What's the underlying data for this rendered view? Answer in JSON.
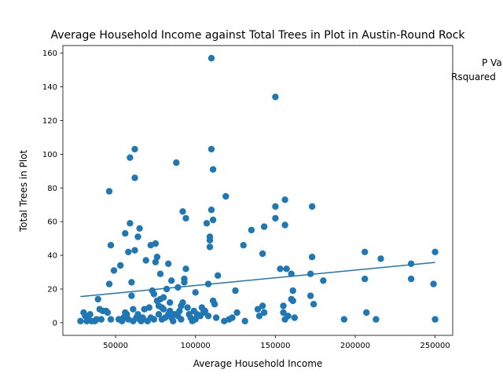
{
  "chart_data": {
    "type": "scatter",
    "title": "Average Household Income against Total Trees in Plot in Austin-Round Rock",
    "xlabel": "Average Household Income",
    "ylabel": "Total Trees in Plot",
    "xlim": [
      17000,
      261000
    ],
    "ylim": [
      -7.5,
      164.5
    ],
    "xticks": [
      50000,
      100000,
      150000,
      200000,
      250000
    ],
    "yticks": [
      0,
      20,
      40,
      60,
      80,
      100,
      120,
      140,
      160
    ],
    "annotations": [
      "P Va",
      "Rsquared"
    ],
    "colors": {
      "points": "#1f77b4",
      "fit_line": "#1f77b4"
    },
    "trend_line": {
      "x": [
        28000,
        250000
      ],
      "y": [
        15.5,
        35.8
      ]
    },
    "points": [
      [
        28000,
        1
      ],
      [
        30000,
        6
      ],
      [
        31000,
        4
      ],
      [
        32000,
        1
      ],
      [
        33000,
        2
      ],
      [
        34000,
        5
      ],
      [
        35000,
        1
      ],
      [
        37000,
        1
      ],
      [
        38000,
        2
      ],
      [
        39000,
        14
      ],
      [
        40000,
        8
      ],
      [
        41000,
        2
      ],
      [
        42000,
        7
      ],
      [
        44000,
        7
      ],
      [
        45000,
        6
      ],
      [
        46000,
        23
      ],
      [
        46000,
        78
      ],
      [
        47000,
        2
      ],
      [
        47000,
        46
      ],
      [
        49000,
        31
      ],
      [
        52000,
        2
      ],
      [
        53000,
        34
      ],
      [
        54000,
        1
      ],
      [
        55000,
        3
      ],
      [
        56000,
        53
      ],
      [
        56000,
        6
      ],
      [
        57000,
        5
      ],
      [
        58000,
        2
      ],
      [
        58000,
        42
      ],
      [
        59000,
        98
      ],
      [
        59000,
        59
      ],
      [
        60000,
        16
      ],
      [
        60000,
        24
      ],
      [
        61000,
        1
      ],
      [
        61000,
        8
      ],
      [
        62000,
        103
      ],
      [
        62000,
        86
      ],
      [
        62000,
        43
      ],
      [
        63000,
        3
      ],
      [
        64000,
        5
      ],
      [
        64000,
        51
      ],
      [
        65000,
        56
      ],
      [
        65000,
        2
      ],
      [
        66000,
        1
      ],
      [
        67000,
        3
      ],
      [
        68000,
        8
      ],
      [
        69000,
        37
      ],
      [
        70000,
        1
      ],
      [
        71000,
        9
      ],
      [
        72000,
        46
      ],
      [
        72000,
        3
      ],
      [
        73000,
        19
      ],
      [
        74000,
        2
      ],
      [
        74000,
        17
      ],
      [
        75000,
        36
      ],
      [
        75000,
        47
      ],
      [
        76000,
        39
      ],
      [
        76000,
        13
      ],
      [
        77000,
        10
      ],
      [
        77000,
        5
      ],
      [
        78000,
        29
      ],
      [
        78000,
        14
      ],
      [
        79000,
        2
      ],
      [
        79000,
        9
      ],
      [
        80000,
        8
      ],
      [
        80000,
        15
      ],
      [
        81000,
        3
      ],
      [
        82000,
        20
      ],
      [
        83000,
        5
      ],
      [
        83000,
        35
      ],
      [
        84000,
        7
      ],
      [
        84000,
        12
      ],
      [
        85000,
        3
      ],
      [
        85000,
        25
      ],
      [
        86000,
        1
      ],
      [
        87000,
        5
      ],
      [
        88000,
        95
      ],
      [
        89000,
        4
      ],
      [
        89000,
        21
      ],
      [
        90000,
        7
      ],
      [
        91000,
        10
      ],
      [
        91000,
        2
      ],
      [
        92000,
        66
      ],
      [
        92000,
        12
      ],
      [
        93000,
        24
      ],
      [
        93000,
        26
      ],
      [
        94000,
        62
      ],
      [
        94000,
        32
      ],
      [
        95000,
        9
      ],
      [
        96000,
        5
      ],
      [
        97000,
        3
      ],
      [
        98000,
        1
      ],
      [
        99000,
        7
      ],
      [
        100000,
        2
      ],
      [
        100000,
        18
      ],
      [
        101000,
        5
      ],
      [
        103000,
        4
      ],
      [
        104000,
        9
      ],
      [
        105000,
        6
      ],
      [
        106000,
        7
      ],
      [
        107000,
        59
      ],
      [
        108000,
        4
      ],
      [
        108000,
        23
      ],
      [
        109000,
        45
      ],
      [
        109000,
        49
      ],
      [
        109000,
        51
      ],
      [
        110000,
        157
      ],
      [
        110000,
        103
      ],
      [
        110000,
        67
      ],
      [
        111000,
        61
      ],
      [
        111000,
        91
      ],
      [
        111000,
        13
      ],
      [
        112000,
        11
      ],
      [
        113000,
        3
      ],
      [
        114000,
        28
      ],
      [
        118000,
        1
      ],
      [
        119000,
        75
      ],
      [
        121000,
        2
      ],
      [
        123000,
        3
      ],
      [
        125000,
        19
      ],
      [
        126000,
        6
      ],
      [
        130000,
        46
      ],
      [
        131000,
        1
      ],
      [
        135000,
        55
      ],
      [
        139000,
        8
      ],
      [
        140000,
        4
      ],
      [
        142000,
        10
      ],
      [
        142000,
        41
      ],
      [
        143000,
        6
      ],
      [
        143000,
        57
      ],
      [
        150000,
        62
      ],
      [
        150000,
        69
      ],
      [
        150000,
        134
      ],
      [
        153000,
        32
      ],
      [
        155000,
        10
      ],
      [
        155000,
        6
      ],
      [
        156000,
        2
      ],
      [
        156000,
        73
      ],
      [
        156000,
        58
      ],
      [
        157000,
        32
      ],
      [
        158000,
        4
      ],
      [
        160000,
        29
      ],
      [
        160000,
        14
      ],
      [
        161000,
        13
      ],
      [
        161000,
        19
      ],
      [
        162000,
        3
      ],
      [
        172000,
        29
      ],
      [
        172000,
        16
      ],
      [
        173000,
        39
      ],
      [
        173000,
        69
      ],
      [
        174000,
        11
      ],
      [
        180000,
        25
      ],
      [
        193000,
        2
      ],
      [
        206000,
        42
      ],
      [
        206000,
        26
      ],
      [
        207000,
        6
      ],
      [
        213000,
        2
      ],
      [
        216000,
        38
      ],
      [
        235000,
        35
      ],
      [
        235000,
        26
      ],
      [
        249000,
        23
      ],
      [
        250000,
        2
      ],
      [
        250000,
        42
      ]
    ]
  }
}
